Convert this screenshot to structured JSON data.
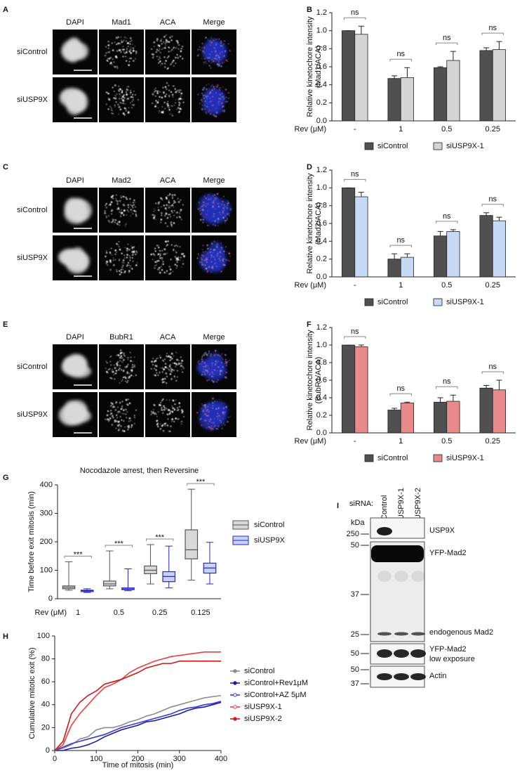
{
  "panel_labels": [
    "A",
    "B",
    "C",
    "D",
    "E",
    "F",
    "G",
    "H",
    "I"
  ],
  "micrographs": [
    {
      "channels": [
        {
          "name": "DAPI",
          "color": "#3c50e6"
        },
        {
          "name": "Mad1",
          "color": "#3c9a28"
        },
        {
          "name": "ACA",
          "color": "#e0201c"
        },
        {
          "name": "Merge",
          "color": "#7a3cc8"
        }
      ],
      "rows": [
        "siControl",
        "siUSP9X"
      ]
    },
    {
      "channels": [
        {
          "name": "DAPI",
          "color": "#3c50e6"
        },
        {
          "name": "Mad2",
          "color": "#3c9a28"
        },
        {
          "name": "ACA",
          "color": "#e0201c"
        },
        {
          "name": "Merge",
          "color": "#7a3cc8"
        }
      ],
      "rows": [
        "siControl",
        "siUSP9X"
      ]
    },
    {
      "channels": [
        {
          "name": "DAPI",
          "color": "#3c50e6"
        },
        {
          "name": "BubR1",
          "color": "#3c9a28"
        },
        {
          "name": "ACA",
          "color": "#e0201c"
        },
        {
          "name": "Merge",
          "color": "#7a3cc8"
        }
      ],
      "rows": [
        "siControl",
        "siUSP9X"
      ]
    }
  ],
  "chart_data": [
    {
      "type": "bar",
      "ylabel": [
        "Relative kinetochore intensity",
        "(Mad1/ACA)"
      ],
      "xlabel": "Rev (μM)",
      "categories": [
        "-",
        "1",
        "0.5",
        "0.25"
      ],
      "ylim": [
        0,
        1.2
      ],
      "yticks": [
        {
          "value": 0,
          "label": "0.0"
        },
        0.2,
        0.4,
        0.6,
        0.8,
        {
          "value": 1,
          "label": "1.0"
        },
        1.2
      ],
      "series": [
        {
          "name": "siControl",
          "color": "#505050",
          "values": [
            1.0,
            0.47,
            0.59,
            0.78
          ],
          "errors": [
            0,
            0.03,
            0.01,
            0.03
          ]
        },
        {
          "name": "siUSP9X-1",
          "color": "#d4d4d4",
          "values": [
            0.96,
            0.48,
            0.67,
            0.79
          ],
          "errors": [
            0.09,
            0.11,
            0.1,
            0.09
          ]
        }
      ],
      "annotations": [
        "ns",
        "ns",
        "ns",
        "ns"
      ]
    },
    {
      "type": "bar",
      "ylabel": [
        "Relative kinetochore intensity",
        "(Mad2/ACA)"
      ],
      "xlabel": "Rev (μM)",
      "categories": [
        "-",
        "1",
        "0.5",
        "0.25"
      ],
      "ylim": [
        0,
        1.2
      ],
      "yticks": [
        {
          "value": 0,
          "label": "0.0"
        },
        0.2,
        0.4,
        0.6,
        0.8,
        {
          "value": 1,
          "label": "1.0"
        },
        1.2
      ],
      "series": [
        {
          "name": "siControl",
          "color": "#505050",
          "values": [
            1.0,
            0.2,
            0.46,
            0.69
          ],
          "errors": [
            0,
            0.06,
            0.05,
            0.03
          ]
        },
        {
          "name": "siUSP9X-1",
          "color": "#c6d9f5",
          "values": [
            0.9,
            0.22,
            0.51,
            0.63
          ],
          "errors": [
            0.05,
            0.04,
            0.02,
            0.04
          ]
        }
      ],
      "annotations": [
        "ns",
        "ns",
        "ns",
        "ns"
      ]
    },
    {
      "type": "bar",
      "ylabel": [
        "Relative kinetochore intensity",
        "(BubR1/ACA)"
      ],
      "xlabel": "Rev (μM)",
      "categories": [
        "-",
        "1",
        "0.5",
        "0.25"
      ],
      "ylim": [
        0,
        1.2
      ],
      "yticks": [
        {
          "value": 0,
          "label": "0.0"
        },
        0.2,
        0.4,
        0.6,
        0.8,
        {
          "value": 1,
          "label": "1.0"
        },
        1.2
      ],
      "series": [
        {
          "name": "siControl",
          "color": "#505050",
          "values": [
            1.0,
            0.26,
            0.35,
            0.51
          ],
          "errors": [
            0,
            0.02,
            0.05,
            0.03
          ]
        },
        {
          "name": "siUSP9X-1",
          "color": "#e8898b",
          "values": [
            0.98,
            0.34,
            0.36,
            0.49
          ],
          "errors": [
            0.02,
            0.01,
            0.07,
            0.11
          ]
        }
      ],
      "annotations": [
        "ns",
        "ns",
        "ns",
        "ns"
      ]
    },
    {
      "type": "box",
      "title": "Nocodazole arrest, then Reversine",
      "ylabel": "Time before exit mitosis (min)",
      "xlabel": "Rev (μM)",
      "categories": [
        "1",
        "0.5",
        "0.25",
        "0.125"
      ],
      "ylim": [
        0,
        400
      ],
      "yticks": [
        0,
        100,
        200,
        300,
        400
      ],
      "series": [
        {
          "name": "siControl",
          "color": "#d9d9d9",
          "edge": "#555555",
          "boxes": [
            {
              "whislo": 30,
              "q1": 35,
              "med": 40,
              "q3": 45,
              "whishi": 130
            },
            {
              "whislo": 35,
              "q1": 45,
              "med": 52,
              "q3": 62,
              "whishi": 168
            },
            {
              "whislo": 52,
              "q1": 88,
              "med": 100,
              "q3": 115,
              "whishi": 190
            },
            {
              "whislo": 65,
              "q1": 140,
              "med": 172,
              "q3": 242,
              "whishi": 385
            }
          ]
        },
        {
          "name": "siUSP9X",
          "color": "#c6d3f7",
          "edge": "#2a2ab8",
          "boxes": [
            {
              "whislo": 22,
              "q1": 25,
              "med": 28,
              "q3": 30,
              "whishi": 35
            },
            {
              "whislo": 28,
              "q1": 32,
              "med": 34,
              "q3": 38,
              "whishi": 105
            },
            {
              "whislo": 38,
              "q1": 60,
              "med": 78,
              "q3": 95,
              "whishi": 185
            },
            {
              "whislo": 52,
              "q1": 90,
              "med": 108,
              "q3": 125,
              "whishi": 198
            }
          ]
        }
      ],
      "annotations": [
        "***",
        "***",
        "***",
        "***"
      ]
    },
    {
      "type": "line",
      "ylabel": "Cumulative mitotic exit (%)",
      "xlabel": "Time of mitosis (min)",
      "x": [
        0,
        20,
        40,
        60,
        80,
        100,
        120,
        140,
        160,
        180,
        200,
        220,
        240,
        260,
        280,
        300,
        320,
        340,
        360,
        380,
        400
      ],
      "xlim": [
        0,
        400
      ],
      "xticks": [
        0,
        100,
        200,
        300,
        400
      ],
      "ylim": [
        0,
        100
      ],
      "yticks": [
        0,
        20,
        40,
        60,
        80,
        100
      ],
      "series": [
        {
          "name": "siControl",
          "color": "#8c8c8c",
          "values": [
            0,
            2,
            5,
            10,
            12,
            18,
            20,
            20,
            22,
            25,
            27,
            30,
            32,
            35,
            38,
            40,
            42,
            44,
            46,
            47,
            48
          ]
        },
        {
          "name": "siControl+Rev1μM",
          "color": "#1a1a9c",
          "values": [
            0,
            0,
            2,
            3,
            5,
            8,
            12,
            15,
            18,
            20,
            22,
            25,
            26,
            28,
            30,
            32,
            35,
            37,
            38,
            40,
            42
          ]
        },
        {
          "name": "siControl+AZ 5μM",
          "color": "#3a3ad8",
          "values": [
            0,
            3,
            6,
            8,
            10,
            12,
            14,
            17,
            20,
            22,
            24,
            26,
            28,
            30,
            32,
            35,
            37,
            38,
            40,
            41,
            43
          ]
        },
        {
          "name": "siUSP9X-1",
          "color": "#e84040",
          "values": [
            0,
            5,
            22,
            32,
            40,
            48,
            55,
            58,
            62,
            68,
            72,
            75,
            78,
            80,
            82,
            83,
            84,
            85,
            86,
            86,
            86
          ]
        },
        {
          "name": "siUSP9X-2",
          "color": "#d01818",
          "values": [
            0,
            8,
            32,
            42,
            48,
            52,
            58,
            60,
            62,
            65,
            68,
            72,
            74,
            76,
            76,
            78,
            78,
            78,
            78,
            78,
            78
          ]
        }
      ]
    }
  ],
  "blot": {
    "prefix": "siRNA:",
    "lanes": [
      "Control",
      "USP9X-1",
      "USP9X-2"
    ],
    "unit": "kDa",
    "panels": [
      {
        "labels": [
          "USP9X"
        ],
        "markers": [
          "250"
        ]
      },
      {
        "labels": [
          "YFP-Mad2",
          "endogenous Mad2"
        ],
        "markers": [
          "50",
          "37",
          "25"
        ]
      },
      {
        "labels": [
          "YFP-Mad2",
          "low exposure"
        ],
        "markers": [
          "50"
        ]
      },
      {
        "labels": [
          "Actin"
        ],
        "markers": [
          "50",
          "37"
        ]
      }
    ]
  }
}
